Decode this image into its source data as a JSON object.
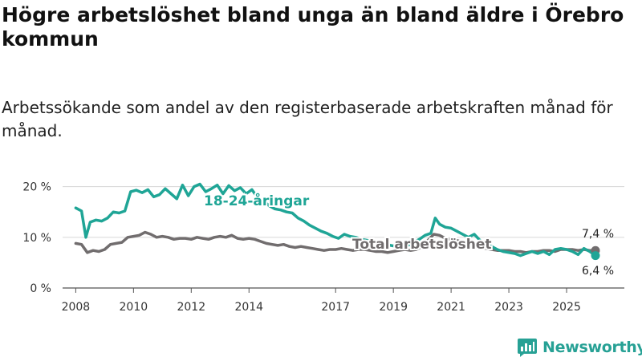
{
  "chart_data": {
    "type": "line",
    "title": "Högre arbetslöshet bland unga än bland äldre i Örebro kommun",
    "subtitle": "Arbetssökande som andel av den registerbaserade arbetskraften månad för månad.",
    "xlabel": "",
    "ylabel": "",
    "ylim": [
      0,
      22
    ],
    "xlim": [
      2007.6,
      2027.0
    ],
    "y_ticks": [
      {
        "value": 0,
        "label": "0 %"
      },
      {
        "value": 10,
        "label": "10 %"
      },
      {
        "value": 20,
        "label": "20 %"
      }
    ],
    "x_ticks": [
      {
        "value": 2008,
        "label": "2008"
      },
      {
        "value": 2010,
        "label": "2010"
      },
      {
        "value": 2012,
        "label": "2012"
      },
      {
        "value": 2014,
        "label": "2014"
      },
      {
        "value": 2017,
        "label": "2017"
      },
      {
        "value": 2019,
        "label": "2019"
      },
      {
        "value": 2021,
        "label": "2021"
      },
      {
        "value": 2023,
        "label": "2023"
      },
      {
        "value": 2025,
        "label": "2025"
      }
    ],
    "grid": true,
    "series": [
      {
        "name": "18-24-åringar",
        "color": "#1fa596",
        "x": [
          2008.0,
          2008.2,
          2008.35,
          2008.5,
          2008.7,
          2008.9,
          2009.1,
          2009.3,
          2009.5,
          2009.7,
          2009.9,
          2010.1,
          2010.3,
          2010.5,
          2010.7,
          2010.9,
          2011.1,
          2011.3,
          2011.5,
          2011.7,
          2011.9,
          2012.1,
          2012.3,
          2012.5,
          2012.7,
          2012.9,
          2013.1,
          2013.3,
          2013.5,
          2013.7,
          2013.9,
          2014.1,
          2014.3,
          2014.5,
          2014.7,
          2014.9,
          2015.1,
          2015.3,
          2015.5,
          2015.7,
          2015.9,
          2016.1,
          2016.3,
          2016.5,
          2016.7,
          2016.9,
          2017.1,
          2017.3,
          2017.5,
          2017.7,
          2017.9,
          2018.1,
          2018.3,
          2018.5,
          2018.7,
          2018.9,
          2019.1,
          2019.3,
          2019.5,
          2019.7,
          2019.9,
          2020.1,
          2020.3,
          2020.45,
          2020.6,
          2020.8,
          2021.0,
          2021.2,
          2021.4,
          2021.6,
          2021.8,
          2022.0,
          2022.2,
          2022.4,
          2022.6,
          2022.8,
          2023.0,
          2023.2,
          2023.4,
          2023.6,
          2023.8,
          2024.0,
          2024.2,
          2024.4,
          2024.6,
          2024.8,
          2025.0,
          2025.2,
          2025.4,
          2025.6,
          2025.8,
          2026.0
        ],
        "values": [
          15.8,
          15.2,
          10.0,
          13.0,
          13.4,
          13.2,
          13.8,
          15.0,
          14.8,
          15.2,
          19.0,
          19.3,
          18.8,
          19.4,
          18.0,
          18.4,
          19.6,
          18.6,
          17.6,
          20.3,
          18.2,
          20.0,
          20.5,
          19.0,
          19.6,
          20.3,
          18.6,
          20.2,
          19.2,
          19.8,
          18.6,
          19.4,
          17.8,
          17.2,
          16.2,
          15.6,
          15.4,
          15.0,
          14.8,
          13.8,
          13.2,
          12.4,
          11.8,
          11.2,
          10.8,
          10.2,
          9.8,
          10.6,
          10.2,
          10.0,
          9.6,
          9.4,
          9.2,
          9.0,
          8.8,
          8.4,
          8.2,
          8.6,
          8.4,
          9.0,
          9.6,
          10.4,
          10.8,
          13.8,
          12.6,
          12.0,
          11.8,
          11.2,
          10.6,
          10.0,
          10.6,
          9.4,
          8.6,
          8.2,
          7.6,
          7.2,
          7.0,
          6.8,
          6.4,
          6.8,
          7.2,
          6.8,
          7.2,
          6.6,
          7.6,
          7.8,
          7.6,
          7.2,
          6.6,
          7.8,
          7.2,
          6.4
        ]
      },
      {
        "name": "Total arbetslöshet",
        "color": "#716d6e",
        "x": [
          2008.0,
          2008.2,
          2008.4,
          2008.6,
          2008.8,
          2009.0,
          2009.2,
          2009.4,
          2009.6,
          2009.8,
          2010.0,
          2010.2,
          2010.4,
          2010.6,
          2010.8,
          2011.0,
          2011.2,
          2011.4,
          2011.6,
          2011.8,
          2012.0,
          2012.2,
          2012.4,
          2012.6,
          2012.8,
          2013.0,
          2013.2,
          2013.4,
          2013.6,
          2013.8,
          2014.0,
          2014.2,
          2014.4,
          2014.6,
          2014.8,
          2015.0,
          2015.2,
          2015.4,
          2015.6,
          2015.8,
          2016.0,
          2016.2,
          2016.4,
          2016.6,
          2016.8,
          2017.0,
          2017.2,
          2017.4,
          2017.6,
          2017.8,
          2018.0,
          2018.2,
          2018.4,
          2018.6,
          2018.8,
          2019.0,
          2019.2,
          2019.4,
          2019.6,
          2019.8,
          2020.0,
          2020.2,
          2020.4,
          2020.6,
          2020.8,
          2021.0,
          2021.2,
          2021.4,
          2021.6,
          2021.8,
          2022.0,
          2022.2,
          2022.4,
          2022.6,
          2022.8,
          2023.0,
          2023.2,
          2023.4,
          2023.6,
          2023.8,
          2024.0,
          2024.2,
          2024.4,
          2024.6,
          2024.8,
          2025.0,
          2025.2,
          2025.4,
          2025.6,
          2025.8,
          2026.0
        ],
        "values": [
          8.8,
          8.6,
          7.0,
          7.4,
          7.2,
          7.6,
          8.6,
          8.8,
          9.0,
          10.0,
          10.2,
          10.4,
          11.0,
          10.6,
          10.0,
          10.2,
          10.0,
          9.6,
          9.8,
          9.8,
          9.6,
          10.0,
          9.8,
          9.6,
          10.0,
          10.2,
          10.0,
          10.4,
          9.8,
          9.6,
          9.8,
          9.6,
          9.2,
          8.8,
          8.6,
          8.4,
          8.6,
          8.2,
          8.0,
          8.2,
          8.0,
          7.8,
          7.6,
          7.4,
          7.6,
          7.6,
          7.8,
          7.6,
          7.4,
          7.6,
          7.6,
          7.4,
          7.2,
          7.2,
          7.0,
          7.2,
          7.4,
          7.6,
          7.4,
          7.6,
          8.2,
          9.4,
          10.6,
          10.4,
          9.8,
          9.6,
          9.4,
          9.0,
          8.8,
          8.4,
          8.0,
          7.8,
          7.6,
          7.4,
          7.4,
          7.4,
          7.2,
          7.2,
          7.0,
          7.2,
          7.2,
          7.4,
          7.4,
          7.2,
          7.6,
          7.6,
          7.6,
          7.4,
          7.6,
          7.4,
          7.4
        ]
      }
    ],
    "annotations": {
      "series_label_youth": "18-24-åringar",
      "series_label_total": "Total arbetslöshet",
      "end_label_total": "7,4 %",
      "end_label_youth": "6,4 %"
    }
  },
  "branding": {
    "logo_text": "Newsworthy",
    "logo_icon": "bar-chart-speech-bubble-icon",
    "accent_color": "#27a195"
  }
}
